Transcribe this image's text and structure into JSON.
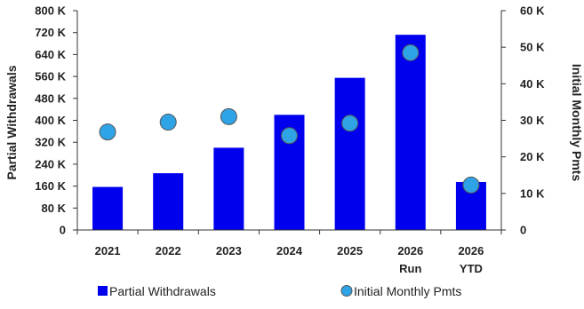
{
  "chart_data": {
    "type": "bar",
    "categories": [
      [
        "2021"
      ],
      [
        "2022"
      ],
      [
        "2023"
      ],
      [
        "2024"
      ],
      [
        "2025"
      ],
      [
        "2026",
        "Run"
      ],
      [
        "2026",
        "YTD"
      ]
    ],
    "series": [
      {
        "name": "Partial Withdrawals",
        "type": "bar",
        "axis": "left",
        "color": "#0000ee",
        "values": [
          157000,
          207000,
          300000,
          420000,
          555000,
          712000,
          175000
        ]
      },
      {
        "name": "Initial Monthly Pmts",
        "type": "scatter",
        "axis": "right",
        "color": "#2ea3e6",
        "values": [
          26800,
          29500,
          31000,
          25800,
          29200,
          48500,
          12300
        ]
      }
    ],
    "ylabel": "Partial Withdrawals",
    "y2label": "Initial Monthly Pmts",
    "ylim": [
      0,
      800000
    ],
    "y2lim": [
      0,
      60000
    ],
    "yticks": [
      "0",
      "80 K",
      "160 K",
      "240 K",
      "320 K",
      "400 K",
      "480 K",
      "560 K",
      "640 K",
      "720 K",
      "800 K"
    ],
    "y2ticks": [
      "0",
      "10 K",
      "20 K",
      "30 K",
      "40 K",
      "50 K",
      "60 K"
    ],
    "legend_position": "bottom",
    "grid": false
  }
}
